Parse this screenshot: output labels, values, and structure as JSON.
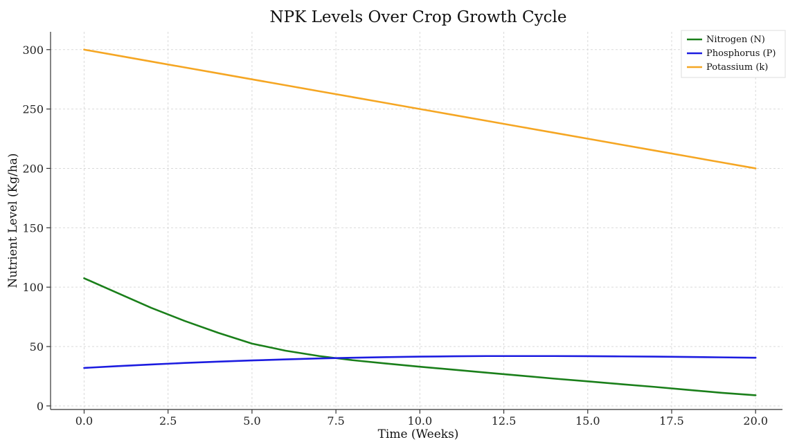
{
  "chart_data": {
    "type": "line",
    "title": "NPK Levels Over Crop Growth Cycle",
    "xlabel": "Time (Weeks)",
    "ylabel": "Nutrient Level (Kg/ha)",
    "xlim": [
      -1,
      20.8
    ],
    "ylim": [
      -3,
      315
    ],
    "xticks": [
      0,
      2.5,
      5,
      7.5,
      10,
      12.5,
      15,
      17.5,
      20
    ],
    "xtick_labels": [
      "0.0",
      "2.5",
      "5.0",
      "7.5",
      "10.0",
      "12.5",
      "15.0",
      "17.5",
      "20.0"
    ],
    "yticks": [
      0,
      50,
      100,
      150,
      200,
      250,
      300
    ],
    "ytick_labels": [
      "0",
      "50",
      "100",
      "150",
      "200",
      "250",
      "300"
    ],
    "grid": true,
    "legend_position": "top-right",
    "x": [
      0,
      1,
      2,
      3,
      4,
      5,
      6,
      7,
      8,
      9,
      10,
      11,
      12,
      13,
      14,
      15,
      16,
      17,
      18,
      19,
      20
    ],
    "series": [
      {
        "name": "Nitrogen (N)",
        "color": "#1a7f1a",
        "values": [
          107.5,
          95,
          82.6,
          71.5,
          61.5,
          52.5,
          46.5,
          42,
          38.5,
          35.7,
          33,
          30.5,
          28,
          25.5,
          23,
          20.7,
          18.3,
          16,
          13.5,
          11,
          9
        ]
      },
      {
        "name": "Phosphorus (P)",
        "color": "#1c1ce0",
        "values": [
          32,
          33.5,
          34.9,
          36.2,
          37.3,
          38.3,
          39.2,
          40,
          40.6,
          41.1,
          41.5,
          41.8,
          42,
          42,
          42,
          41.9,
          41.7,
          41.5,
          41.2,
          40.9,
          40.6
        ]
      },
      {
        "name": "Potassium (k)",
        "color": "#f5a623",
        "values": [
          300,
          295,
          290,
          285,
          280,
          275,
          270,
          265,
          260,
          255,
          250,
          245,
          240,
          235,
          230,
          225,
          220,
          215,
          210,
          205,
          200
        ]
      }
    ]
  }
}
